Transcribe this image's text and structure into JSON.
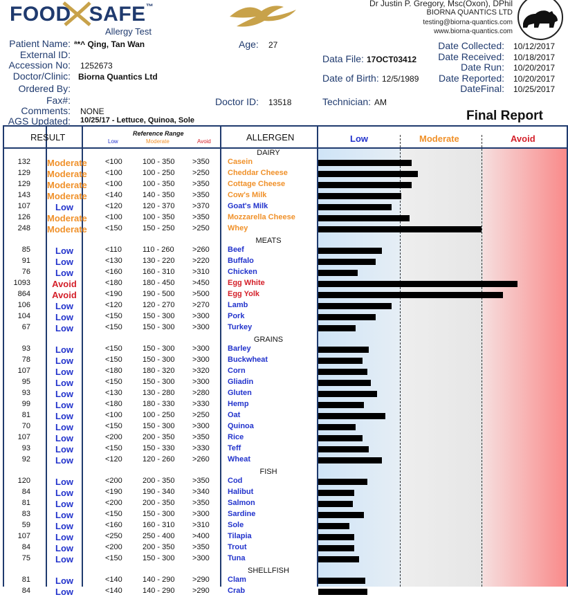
{
  "header": {
    "logo_text": "FOOD",
    "logo_text2": "SAFE",
    "logo_tm": "™",
    "logo_sub": "Allergy Test",
    "doctor_name": "Dr Justin P. Gregory, Msc(Oxon), DPhil",
    "company": "BIORNA QUANTICS LTD",
    "email": "testing@biorna-quantics.com",
    "website": "www.biorna-quantics.com",
    "final_report": "Final Report"
  },
  "patient": {
    "name_label": "Patient Name:",
    "name": "ª*^ Qing, Tan Wan",
    "external_label": "External ID:",
    "accession_label": "Accession No:",
    "accession": "1252673",
    "doctor_label": "Doctor/Clinic:",
    "doctor": "Biorna Quantics Ltd",
    "ordered_label": "Ordered By:",
    "fax_label": "Fax#:",
    "comments_label": "Comments:",
    "comments": "NONE",
    "ags_label": "AGS Updated:",
    "ags": "10/25/17 - Lettuce, Quinoa, Sole",
    "age_label": "Age:",
    "age": "27",
    "datafile_label": "Data File:",
    "datafile": "17OCT03412",
    "dob_label": "Date of Birth:",
    "dob": "12/5/1989",
    "doctorid_label": "Doctor ID:",
    "doctorid": "13518",
    "tech_label": "Technician:",
    "tech": "AM"
  },
  "dates": [
    {
      "label": "Date Collected:",
      "value": "10/12/2017"
    },
    {
      "label": "Date Received:",
      "value": "10/18/2017"
    },
    {
      "label": "Date Run:",
      "value": "10/20/2017"
    },
    {
      "label": "Date Reported:",
      "value": "10/20/2017"
    },
    {
      "label": "DateFinal:",
      "value": "10/25/2017"
    }
  ],
  "table_head": {
    "result": "RESULT",
    "reference": "Reference Range",
    "ref_low": "Low",
    "ref_mod": "Moderate",
    "ref_avoid": "Avoid",
    "allergen": "ALLERGEN",
    "zone_low": "Low",
    "zone_mod": "Moderate",
    "zone_avoid": "Avoid"
  },
  "colors": {
    "low": "#2233cc",
    "moderate": "#f0912a",
    "avoid": "#d4202a"
  },
  "sections": [
    {
      "title": "DAIRY",
      "rows": [
        {
          "value": 132,
          "level": "Moderate",
          "r1": "<100",
          "r2": "100 - 350",
          "r3": ">350",
          "name": "Casein"
        },
        {
          "value": 129,
          "level": "Moderate",
          "r1": "<100",
          "r2": "100 - 250",
          "r3": ">250",
          "name": "Cheddar Cheese"
        },
        {
          "value": 129,
          "level": "Moderate",
          "r1": "<100",
          "r2": "100 - 350",
          "r3": ">350",
          "name": "Cottage Cheese"
        },
        {
          "value": 143,
          "level": "Moderate",
          "r1": "<140",
          "r2": "140 - 350",
          "r3": ">350",
          "name": "Cow's Milk"
        },
        {
          "value": 107,
          "level": "Low",
          "r1": "<120",
          "r2": "120 - 370",
          "r3": ">370",
          "name": "Goat's Milk"
        },
        {
          "value": 126,
          "level": "Moderate",
          "r1": "<100",
          "r2": "100 - 350",
          "r3": ">350",
          "name": "Mozzarella Cheese"
        },
        {
          "value": 248,
          "level": "Moderate",
          "r1": "<150",
          "r2": "150 - 250",
          "r3": ">250",
          "name": "Whey"
        }
      ]
    },
    {
      "title": "MEATS",
      "rows": [
        {
          "value": 85,
          "level": "Low",
          "r1": "<110",
          "r2": "110 - 260",
          "r3": ">260",
          "name": "Beef"
        },
        {
          "value": 91,
          "level": "Low",
          "r1": "<130",
          "r2": "130 - 220",
          "r3": ">220",
          "name": "Buffalo"
        },
        {
          "value": 76,
          "level": "Low",
          "r1": "<160",
          "r2": "160 - 310",
          "r3": ">310",
          "name": "Chicken"
        },
        {
          "value": 1093,
          "level": "Avoid",
          "r1": "<180",
          "r2": "180 - 450",
          "r3": ">450",
          "name": "Egg White"
        },
        {
          "value": 864,
          "level": "Avoid",
          "r1": "<190",
          "r2": "190 - 500",
          "r3": ">500",
          "name": "Egg Yolk"
        },
        {
          "value": 106,
          "level": "Low",
          "r1": "<120",
          "r2": "120 - 270",
          "r3": ">270",
          "name": "Lamb"
        },
        {
          "value": 104,
          "level": "Low",
          "r1": "<150",
          "r2": "150 - 300",
          "r3": ">300",
          "name": "Pork"
        },
        {
          "value": 67,
          "level": "Low",
          "r1": "<150",
          "r2": "150 - 300",
          "r3": ">300",
          "name": "Turkey"
        }
      ]
    },
    {
      "title": "GRAINS",
      "rows": [
        {
          "value": 93,
          "level": "Low",
          "r1": "<150",
          "r2": "150 - 300",
          "r3": ">300",
          "name": "Barley"
        },
        {
          "value": 78,
          "level": "Low",
          "r1": "<150",
          "r2": "150 - 300",
          "r3": ">300",
          "name": "Buckwheat"
        },
        {
          "value": 107,
          "level": "Low",
          "r1": "<180",
          "r2": "180 - 320",
          "r3": ">320",
          "name": "Corn"
        },
        {
          "value": 95,
          "level": "Low",
          "r1": "<150",
          "r2": "150 - 300",
          "r3": ">300",
          "name": "Gliadin"
        },
        {
          "value": 93,
          "level": "Low",
          "r1": "<130",
          "r2": "130 - 280",
          "r3": ">280",
          "name": "Gluten"
        },
        {
          "value": 99,
          "level": "Low",
          "r1": "<180",
          "r2": "180 - 330",
          "r3": ">330",
          "name": "Hemp"
        },
        {
          "value": 81,
          "level": "Low",
          "r1": "<100",
          "r2": "100 - 250",
          "r3": ">250",
          "name": "Oat"
        },
        {
          "value": 70,
          "level": "Low",
          "r1": "<150",
          "r2": "150 - 300",
          "r3": ">300",
          "name": "Quinoa"
        },
        {
          "value": 107,
          "level": "Low",
          "r1": "<200",
          "r2": "200 - 350",
          "r3": ">350",
          "name": "Rice"
        },
        {
          "value": 93,
          "level": "Low",
          "r1": "<150",
          "r2": "150 - 330",
          "r3": ">330",
          "name": "Teff"
        },
        {
          "value": 92,
          "level": "Low",
          "r1": "<120",
          "r2": "120 - 260",
          "r3": ">260",
          "name": "Wheat"
        }
      ]
    },
    {
      "title": "FISH",
      "rows": [
        {
          "value": 120,
          "level": "Low",
          "r1": "<200",
          "r2": "200 - 350",
          "r3": ">350",
          "name": "Cod"
        },
        {
          "value": 84,
          "level": "Low",
          "r1": "<190",
          "r2": "190 - 340",
          "r3": ">340",
          "name": "Halibut"
        },
        {
          "value": 81,
          "level": "Low",
          "r1": "<200",
          "r2": "200 - 350",
          "r3": ">350",
          "name": "Salmon"
        },
        {
          "value": 83,
          "level": "Low",
          "r1": "<150",
          "r2": "150 - 300",
          "r3": ">300",
          "name": "Sardine"
        },
        {
          "value": 59,
          "level": "Low",
          "r1": "<160",
          "r2": "160 - 310",
          "r3": ">310",
          "name": "Sole"
        },
        {
          "value": 107,
          "level": "Low",
          "r1": "<250",
          "r2": "250 - 400",
          "r3": ">400",
          "name": "Tilapia"
        },
        {
          "value": 84,
          "level": "Low",
          "r1": "<200",
          "r2": "200 - 350",
          "r3": ">350",
          "name": "Trout"
        },
        {
          "value": 75,
          "level": "Low",
          "r1": "<150",
          "r2": "150 - 300",
          "r3": ">300",
          "name": "Tuna"
        }
      ]
    },
    {
      "title": "SHELLFISH",
      "rows": [
        {
          "value": 81,
          "level": "Low",
          "r1": "<140",
          "r2": "140 - 290",
          "r3": ">290",
          "name": "Clam"
        },
        {
          "value": 84,
          "level": "Low",
          "r1": "<140",
          "r2": "140 - 290",
          "r3": ">290",
          "name": "Crab"
        }
      ]
    }
  ],
  "bar_levels": {
    "Casein": 0.57,
    "Cheddar Cheese": 0.61,
    "Cottage Cheese": 0.57,
    "Cow's Milk": 0.51,
    "Goat's Milk": 0.45,
    "Mozzarella Cheese": 0.56,
    "Whey": 1.0,
    "Beef": 0.39,
    "Buffalo": 0.35,
    "Chicken": 0.24,
    "Egg White": 1.22,
    "Egg Yolk": 1.13,
    "Lamb": 0.45,
    "Pork": 0.35,
    "Turkey": 0.23,
    "Barley": 0.31,
    "Buckwheat": 0.27,
    "Corn": 0.3,
    "Gliadin": 0.32,
    "Gluten": 0.36,
    "Hemp": 0.28,
    "Oat": 0.41,
    "Quinoa": 0.23,
    "Rice": 0.27,
    "Teff": 0.31,
    "Wheat": 0.39,
    "Cod": 0.3,
    "Halibut": 0.22,
    "Salmon": 0.21,
    "Sardine": 0.28,
    "Sole": 0.19,
    "Tilapia": 0.22,
    "Trout": 0.22,
    "Tuna": 0.25,
    "Clam": 0.29,
    "Crab": 0.3
  }
}
